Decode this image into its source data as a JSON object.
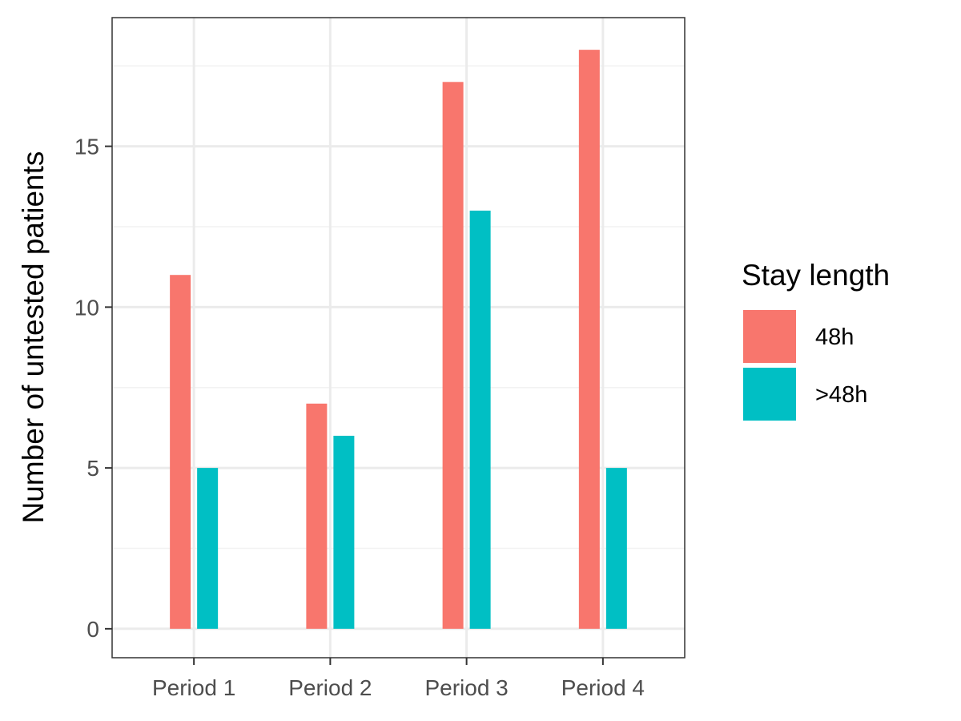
{
  "chart_data": {
    "type": "bar",
    "categories": [
      "Period 1",
      "Period 2",
      "Period 3",
      "Period 4"
    ],
    "series": [
      {
        "name": "48h",
        "values": [
          11,
          7,
          17,
          18
        ],
        "color": "#F8766D"
      },
      {
        "name": ">48h",
        "values": [
          5,
          6,
          13,
          5
        ],
        "color": "#00BFC4"
      }
    ],
    "ylabel": "Number of untested patients",
    "xlabel": "",
    "ylim": [
      -0.9,
      19.0
    ],
    "yticks": [
      0,
      5,
      10,
      15
    ],
    "grid": true,
    "legend": {
      "title": "Stay length",
      "position": "right"
    }
  }
}
